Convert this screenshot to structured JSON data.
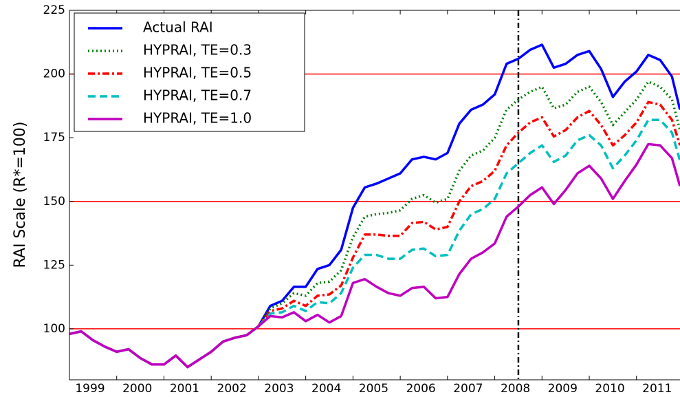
{
  "chart_data": {
    "type": "line",
    "ylabel": "RAI Scale (R*=100)",
    "x": [
      1999,
      1999.25,
      1999.5,
      1999.75,
      2000,
      2000.25,
      2000.5,
      2000.75,
      2001,
      2001.25,
      2001.5,
      2001.75,
      2002,
      2002.25,
      2002.5,
      2002.75,
      2003,
      2003.25,
      2003.5,
      2003.75,
      2004,
      2004.25,
      2004.5,
      2004.75,
      2005,
      2005.25,
      2005.5,
      2005.75,
      2006,
      2006.25,
      2006.5,
      2006.75,
      2007,
      2007.25,
      2007.5,
      2007.75,
      2008,
      2008.25,
      2008.5,
      2008.75,
      2009,
      2009.25,
      2009.5,
      2009.75,
      2010,
      2010.25,
      2010.5,
      2010.75,
      2011,
      2011.25,
      2011.5,
      2011.75,
      2011.92
    ],
    "series": [
      {
        "name": "Actual RAI",
        "color": "#0000ff",
        "linestyle": "solid",
        "values": [
          98,
          99,
          95.5,
          93,
          91,
          92,
          88.5,
          86,
          86,
          89.5,
          85,
          88,
          91,
          95,
          96.5,
          97.5,
          101,
          109,
          111,
          116.5,
          116.5,
          123.5,
          125,
          131,
          147.5,
          155.5,
          157,
          159,
          161,
          166.5,
          167.5,
          166.5,
          169,
          180.5,
          186,
          188,
          192,
          204,
          206,
          209.5,
          211.5,
          202.5,
          204,
          207.5,
          209,
          202,
          191,
          197,
          201,
          207.5,
          205.5,
          199,
          186
        ]
      },
      {
        "name": "HYPRAI, TE=0.3",
        "color": "#007f00",
        "linestyle": "dotted",
        "values": [
          98,
          99,
          95.5,
          93,
          91,
          92,
          88.5,
          86,
          86,
          89.5,
          85,
          88,
          91,
          95,
          96.5,
          97.5,
          101,
          108,
          110,
          114,
          113,
          118,
          118.5,
          123,
          136,
          144,
          145,
          145.5,
          146.5,
          151,
          152.5,
          149.5,
          151,
          162,
          168,
          170,
          175,
          186,
          190,
          193,
          195,
          186.5,
          188,
          193,
          195,
          189,
          180,
          185,
          190,
          197,
          195,
          190,
          178
        ]
      },
      {
        "name": "HYPRAI, TE=0.5",
        "color": "#ff0000",
        "linestyle": "dashdot",
        "values": [
          98,
          99,
          95.5,
          93,
          91,
          92,
          88.5,
          86,
          86,
          89.5,
          85,
          88,
          91,
          95,
          96.5,
          97.5,
          101,
          107,
          108,
          111,
          109,
          113,
          113.5,
          117,
          128,
          137,
          137,
          136.5,
          136.5,
          141.5,
          142,
          139,
          140,
          150,
          156,
          158,
          162,
          172,
          177,
          181,
          183,
          175.5,
          178,
          183,
          185.5,
          180,
          172,
          176,
          181,
          189,
          188,
          182,
          172
        ]
      },
      {
        "name": "HYPRAI, TE=0.7",
        "color": "#00bfbf",
        "linestyle": "dashed",
        "values": [
          98,
          99,
          95.5,
          93,
          91,
          92,
          88.5,
          86,
          86,
          89.5,
          85,
          88,
          91,
          95,
          96.5,
          97.5,
          101,
          106,
          106.5,
          109,
          107,
          110.5,
          110,
          114,
          124,
          129,
          129,
          127.5,
          127.5,
          131,
          131.5,
          128.5,
          129,
          138.5,
          145,
          147,
          151,
          161,
          165,
          169,
          172,
          165.5,
          168,
          174,
          176,
          172,
          163,
          168,
          174,
          182,
          182,
          177,
          166
        ]
      },
      {
        "name": "HYPRAI, TE=1.0",
        "color": "#bf00bf",
        "linestyle": "solid",
        "values": [
          98,
          99,
          95.5,
          93,
          91,
          92,
          88.5,
          86,
          86,
          89.5,
          85,
          88,
          91,
          95,
          96.5,
          97.5,
          101,
          105,
          104.5,
          106.5,
          103,
          105.5,
          102.5,
          105,
          118,
          119.5,
          116.5,
          114,
          113,
          116,
          116.5,
          112,
          112.5,
          121.5,
          127.5,
          130,
          133.5,
          144,
          148,
          152.5,
          155.5,
          149,
          154.5,
          161,
          164,
          159,
          151,
          158,
          164.5,
          172.5,
          172,
          167,
          156
        ]
      }
    ],
    "xlim": [
      1999,
      2011.92
    ],
    "ylim": [
      80,
      225
    ],
    "xticks": [
      1999,
      2000,
      2001,
      2002,
      2003,
      2004,
      2005,
      2006,
      2007,
      2008,
      2009,
      2010,
      2011
    ],
    "yticks": [
      100,
      125,
      150,
      175,
      200,
      225
    ],
    "hlines": [
      100,
      150,
      200
    ],
    "hline_color": "#ff0000",
    "vline": 2008.5,
    "legend": "upper left"
  }
}
